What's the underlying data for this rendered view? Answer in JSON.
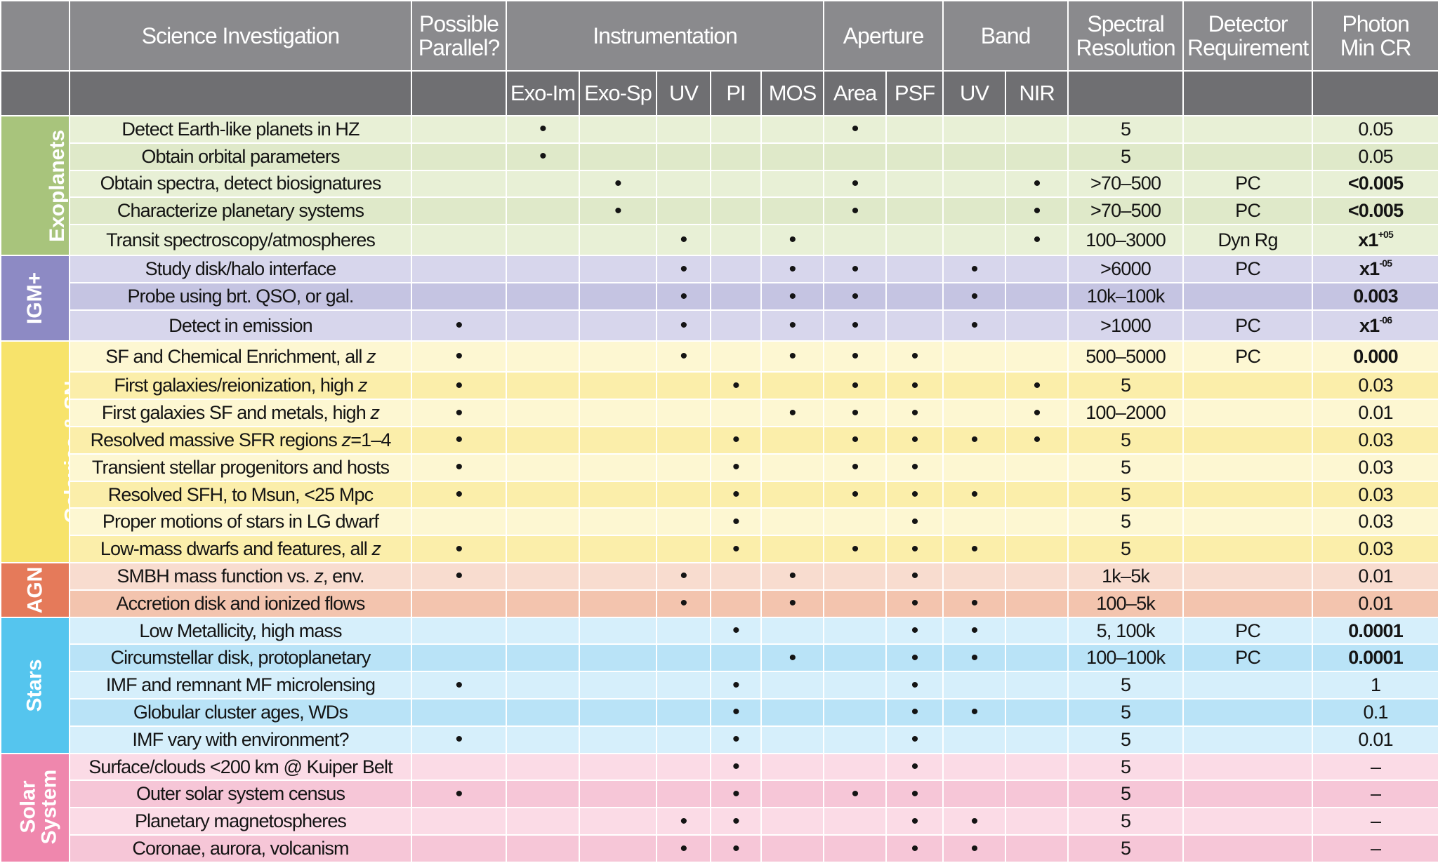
{
  "header": {
    "science": "Science Investigation",
    "parallel": [
      "Possible",
      "Parallel?"
    ],
    "instrumentation": "Instrumentation",
    "aperture": "Aperture",
    "band": "Band",
    "spectral": [
      "Spectral",
      "Resolution"
    ],
    "detector": [
      "Detector",
      "Requirement"
    ],
    "photon": [
      "Photon",
      "Min CR"
    ]
  },
  "subheader": {
    "inst": [
      "Exo-Im",
      "Exo-Sp",
      "UV",
      "PI",
      "MOS"
    ],
    "aperture": [
      "Area",
      "PSF"
    ],
    "band": [
      "UV",
      "NIR"
    ]
  },
  "colors": {
    "header_bg": "#8a8a8d",
    "subheader_bg": "#6f6f72",
    "exoplanets": "#a8c47c",
    "igm": "#8d8ac4",
    "galaxies": "#f7e36b",
    "agn": "#e57a5a",
    "stars": "#55c5ee",
    "solar": "#ef87ad"
  },
  "groups": [
    {
      "key": "exo",
      "label": [
        "Exoplanets"
      ],
      "rows": [
        {
          "inv": [
            "Detect Earth-like planets in HZ"
          ],
          "par": "",
          "exoim": "•",
          "exosp": "",
          "uv": "",
          "pi": "",
          "mos": "",
          "area": "•",
          "psf": "",
          "buv": "",
          "nir": "",
          "spec": "5",
          "det": "",
          "cr": "0.05"
        },
        {
          "inv": [
            "Obtain orbital parameters"
          ],
          "par": "",
          "exoim": "•",
          "exosp": "",
          "uv": "",
          "pi": "",
          "mos": "",
          "area": "",
          "psf": "",
          "buv": "",
          "nir": "",
          "spec": "5",
          "det": "",
          "cr": "0.05"
        },
        {
          "inv": [
            "Obtain spectra, detect biosignatures"
          ],
          "par": "",
          "exoim": "",
          "exosp": "•",
          "uv": "",
          "pi": "",
          "mos": "",
          "area": "•",
          "psf": "",
          "buv": "",
          "nir": "•",
          "spec": ">70–500",
          "det": "PC",
          "cr": "<0.005",
          "bold": true
        },
        {
          "inv": [
            "Characterize planetary systems"
          ],
          "par": "",
          "exoim": "",
          "exosp": "•",
          "uv": "",
          "pi": "",
          "mos": "",
          "area": "•",
          "psf": "",
          "buv": "",
          "nir": "•",
          "spec": ">70–500",
          "det": "PC",
          "cr": "<0.005",
          "bold": true
        },
        {
          "inv": [
            "Transit spectroscopy/atmospheres"
          ],
          "par": "",
          "exoim": "",
          "exosp": "",
          "uv": "•",
          "pi": "",
          "mos": "•",
          "area": "",
          "psf": "",
          "buv": "",
          "nir": "•",
          "spec": "100–3000",
          "det": "Dyn Rg",
          "cr": "x1",
          "cr_sup": "+05",
          "bold": true,
          "tall": true
        }
      ]
    },
    {
      "key": "igm",
      "label": [
        "IGM+"
      ],
      "rows": [
        {
          "inv": [
            "Study disk/halo interface"
          ],
          "par": "",
          "exoim": "",
          "exosp": "",
          "uv": "•",
          "pi": "",
          "mos": "•",
          "area": "•",
          "psf": "",
          "buv": "•",
          "nir": "",
          "spec": ">6000",
          "det": "PC",
          "cr": "x1",
          "cr_sup": "-05",
          "bold": true
        },
        {
          "inv": [
            "Probe using brt. QSO, or gal."
          ],
          "par": "",
          "exoim": "",
          "exosp": "",
          "uv": "•",
          "pi": "",
          "mos": "•",
          "area": "•",
          "psf": "",
          "buv": "•",
          "nir": "",
          "spec": "10k–100k",
          "det": "",
          "cr": "0.003",
          "bold": true
        },
        {
          "inv": [
            "Detect in emission"
          ],
          "par": "•",
          "exoim": "",
          "exosp": "",
          "uv": "•",
          "pi": "",
          "mos": "•",
          "area": "•",
          "psf": "",
          "buv": "•",
          "nir": "",
          "spec": ">1000",
          "det": "PC",
          "cr": "x1",
          "cr_sup": "-06",
          "bold": true,
          "tall": true
        }
      ]
    },
    {
      "key": "gal",
      "label": [
        "Galaxies & SN"
      ],
      "rows": [
        {
          "inv": [
            "SF and Chemical Enrichment, all ",
            "z"
          ],
          "par": "•",
          "exoim": "",
          "exosp": "",
          "uv": "•",
          "pi": "",
          "mos": "•",
          "area": "•",
          "psf": "•",
          "buv": "",
          "nir": "",
          "spec": "500–5000",
          "det": "PC",
          "cr": "0.000",
          "bold": true,
          "tall": true
        },
        {
          "inv": [
            "First galaxies/reionization, high ",
            "z"
          ],
          "par": "•",
          "exoim": "",
          "exosp": "",
          "uv": "",
          "pi": "•",
          "mos": "",
          "area": "•",
          "psf": "•",
          "buv": "",
          "nir": "•",
          "spec": "5",
          "det": "",
          "cr": "0.03"
        },
        {
          "inv": [
            "First galaxies SF and metals, high ",
            "z"
          ],
          "par": "•",
          "exoim": "",
          "exosp": "",
          "uv": "",
          "pi": "",
          "mos": "•",
          "area": "•",
          "psf": "•",
          "buv": "",
          "nir": "•",
          "spec": "100–2000",
          "det": "",
          "cr": "0.01"
        },
        {
          "inv": [
            "Resolved massive SFR regions ",
            "z",
            "=1–4"
          ],
          "par": "•",
          "exoim": "",
          "exosp": "",
          "uv": "",
          "pi": "•",
          "mos": "",
          "area": "•",
          "psf": "•",
          "buv": "•",
          "nir": "•",
          "spec": "5",
          "det": "",
          "cr": "0.03"
        },
        {
          "inv": [
            "Transient stellar progenitors and hosts"
          ],
          "par": "•",
          "exoim": "",
          "exosp": "",
          "uv": "",
          "pi": "•",
          "mos": "",
          "area": "•",
          "psf": "•",
          "buv": "",
          "nir": "",
          "spec": "5",
          "det": "",
          "cr": "0.03"
        },
        {
          "inv": [
            "Resolved SFH, to Msun, <25 Mpc"
          ],
          "par": "•",
          "exoim": "",
          "exosp": "",
          "uv": "",
          "pi": "•",
          "mos": "",
          "area": "•",
          "psf": "•",
          "buv": "•",
          "nir": "",
          "spec": "5",
          "det": "",
          "cr": "0.03"
        },
        {
          "inv": [
            "Proper motions of stars in LG dwarf"
          ],
          "par": "",
          "exoim": "",
          "exosp": "",
          "uv": "",
          "pi": "•",
          "mos": "",
          "area": "",
          "psf": "•",
          "buv": "",
          "nir": "",
          "spec": "5",
          "det": "",
          "cr": "0.03"
        },
        {
          "inv": [
            "Low-mass dwarfs and features, all ",
            "z"
          ],
          "par": "•",
          "exoim": "",
          "exosp": "",
          "uv": "",
          "pi": "•",
          "mos": "",
          "area": "•",
          "psf": "•",
          "buv": "•",
          "nir": "",
          "spec": "5",
          "det": "",
          "cr": "0.03"
        }
      ]
    },
    {
      "key": "agn",
      "label": [
        "AGN"
      ],
      "rows": [
        {
          "inv": [
            "SMBH mass function vs. ",
            "z",
            ", env."
          ],
          "par": "•",
          "exoim": "",
          "exosp": "",
          "uv": "•",
          "pi": "",
          "mos": "•",
          "area": "",
          "psf": "•",
          "buv": "",
          "nir": "",
          "spec": "1k–5k",
          "det": "",
          "cr": "0.01"
        },
        {
          "inv": [
            "Accretion disk and ionized flows"
          ],
          "par": "",
          "exoim": "",
          "exosp": "",
          "uv": "•",
          "pi": "",
          "mos": "•",
          "area": "",
          "psf": "•",
          "buv": "•",
          "nir": "",
          "spec": "100–5k",
          "det": "",
          "cr": "0.01"
        }
      ]
    },
    {
      "key": "stars",
      "label": [
        "Stars"
      ],
      "rows": [
        {
          "inv": [
            "Low Metallicity, high mass"
          ],
          "par": "",
          "exoim": "",
          "exosp": "",
          "uv": "",
          "pi": "•",
          "mos": "",
          "area": "",
          "psf": "•",
          "buv": "•",
          "nir": "",
          "spec": "5, 100k",
          "det": "PC",
          "cr": "0.0001",
          "bold": true
        },
        {
          "inv": [
            "Circumstellar disk, protoplanetary"
          ],
          "par": "",
          "exoim": "",
          "exosp": "",
          "uv": "",
          "pi": "",
          "mos": "•",
          "area": "",
          "psf": "•",
          "buv": "•",
          "nir": "",
          "spec": "100–100k",
          "det": "PC",
          "cr": "0.0001",
          "bold": true
        },
        {
          "inv": [
            "IMF and remnant MF microlensing"
          ],
          "par": "•",
          "exoim": "",
          "exosp": "",
          "uv": "",
          "pi": "•",
          "mos": "",
          "area": "",
          "psf": "•",
          "buv": "",
          "nir": "",
          "spec": "5",
          "det": "",
          "cr": "1"
        },
        {
          "inv": [
            "Globular cluster ages, WDs"
          ],
          "par": "",
          "exoim": "",
          "exosp": "",
          "uv": "",
          "pi": "•",
          "mos": "",
          "area": "",
          "psf": "•",
          "buv": "•",
          "nir": "",
          "spec": "5",
          "det": "",
          "cr": "0.1"
        },
        {
          "inv": [
            "IMF vary with environment?"
          ],
          "par": "•",
          "exoim": "",
          "exosp": "",
          "uv": "",
          "pi": "•",
          "mos": "",
          "area": "",
          "psf": "•",
          "buv": "",
          "nir": "",
          "spec": "5",
          "det": "",
          "cr": "0.01"
        }
      ]
    },
    {
      "key": "solar",
      "label": [
        "Solar",
        "System"
      ],
      "rows": [
        {
          "inv": [
            "Surface/clouds <200 km @ Kuiper Belt"
          ],
          "par": "",
          "exoim": "",
          "exosp": "",
          "uv": "",
          "pi": "•",
          "mos": "",
          "area": "",
          "psf": "•",
          "buv": "",
          "nir": "",
          "spec": "5",
          "det": "",
          "cr": "–"
        },
        {
          "inv": [
            "Outer solar system census"
          ],
          "par": "•",
          "exoim": "",
          "exosp": "",
          "uv": "",
          "pi": "•",
          "mos": "",
          "area": "•",
          "psf": "•",
          "buv": "",
          "nir": "",
          "spec": "5",
          "det": "",
          "cr": "–"
        },
        {
          "inv": [
            "Planetary magnetospheres"
          ],
          "par": "",
          "exoim": "",
          "exosp": "",
          "uv": "•",
          "pi": "•",
          "mos": "",
          "area": "",
          "psf": "•",
          "buv": "•",
          "nir": "",
          "spec": "5",
          "det": "",
          "cr": "–"
        },
        {
          "inv": [
            "Coronae, aurora, volcanism"
          ],
          "par": "",
          "exoim": "",
          "exosp": "",
          "uv": "•",
          "pi": "•",
          "mos": "",
          "area": "",
          "psf": "•",
          "buv": "•",
          "nir": "",
          "spec": "5",
          "det": "",
          "cr": "–"
        }
      ]
    }
  ]
}
